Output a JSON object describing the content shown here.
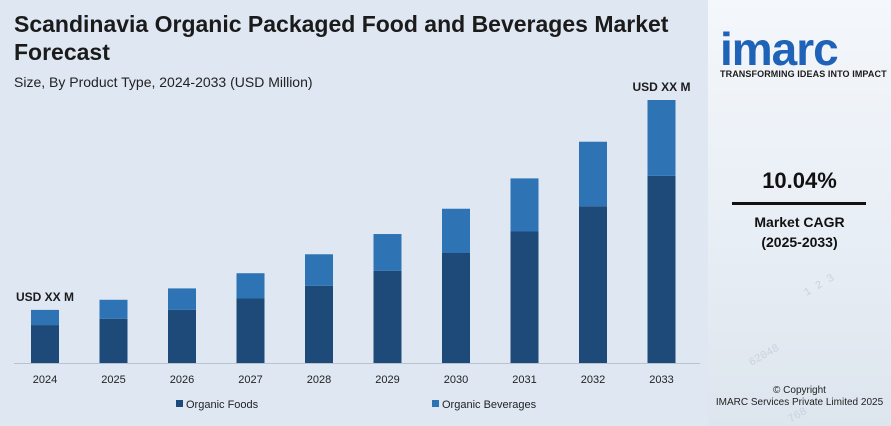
{
  "header": {
    "title": "Scandinavia Organic Packaged Food and Beverages Market Forecast",
    "subtitle": "Size, By Product Type, 2024-2033 (USD Million)"
  },
  "brand": {
    "logo_text": "imarc",
    "tagline": "TRANSFORMING IDEAS INTO IMPACT",
    "color": "#1f63b8"
  },
  "kpi": {
    "value": "10.04%",
    "label_line1": "Market CAGR",
    "label_line2": "(2025-2033)"
  },
  "footer": {
    "copyright_line1": "© Copyright",
    "copyright_line2": "IMARC Services Private Limited 2025"
  },
  "chart_data": {
    "type": "bar",
    "stacked": true,
    "categories": [
      "2024",
      "2025",
      "2026",
      "2027",
      "2028",
      "2029",
      "2030",
      "2031",
      "2032",
      "2033"
    ],
    "series": [
      {
        "name": "Organic Foods",
        "color": "#1e4a7a",
        "values": [
          30,
          35,
          42,
          51,
          61,
          73,
          87,
          104,
          124,
          148
        ]
      },
      {
        "name": "Organic Beverages",
        "color": "#2e74b5",
        "values": [
          12,
          15,
          17,
          20,
          25,
          29,
          35,
          42,
          51,
          60
        ]
      }
    ],
    "annotations": [
      {
        "category": "2024",
        "text": "USD XX M"
      },
      {
        "category": "2033",
        "text": "USD XX M"
      }
    ],
    "ylim": [
      0,
      208
    ],
    "grid": false,
    "legend_position": "bottom"
  }
}
